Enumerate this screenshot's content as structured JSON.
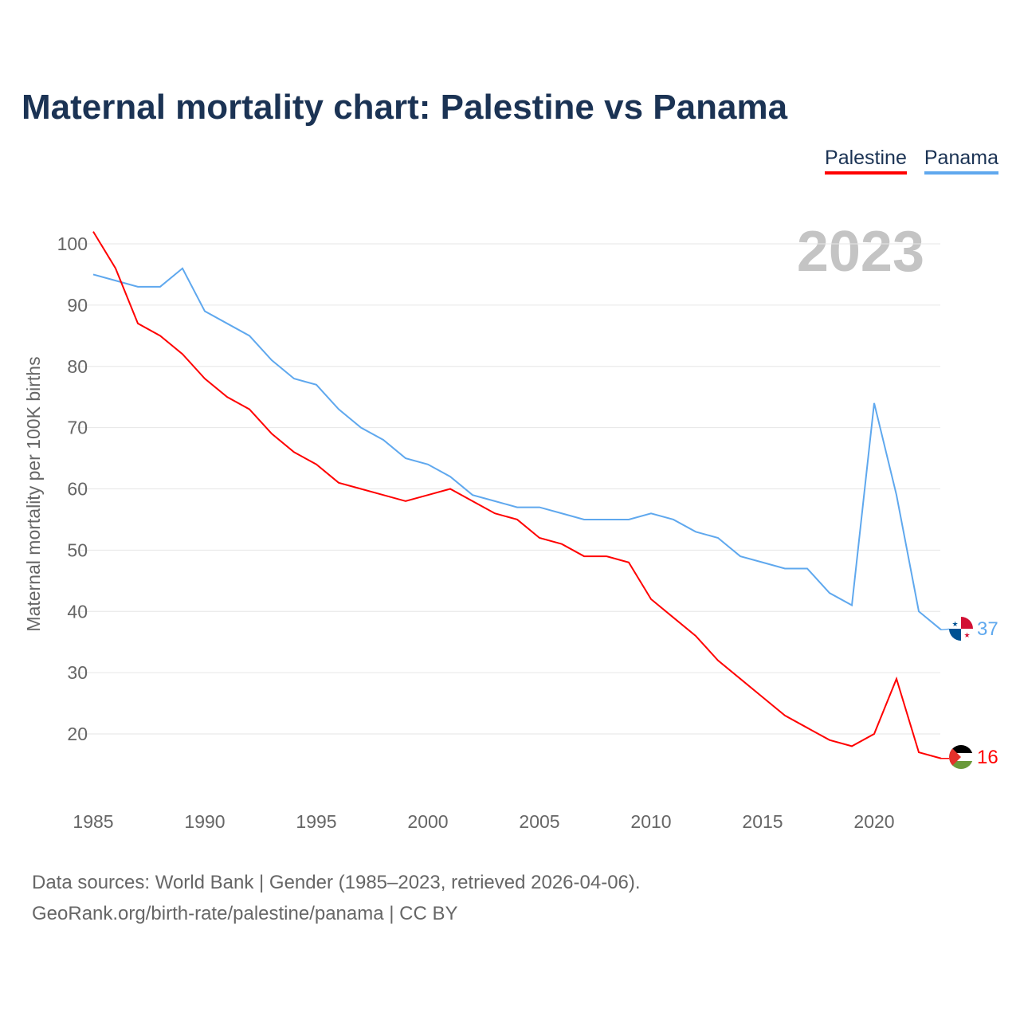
{
  "title": "Maternal mortality chart: Palestine vs Panama",
  "footer": {
    "line1": "Data sources: World Bank | Gender (1985–2023, retrieved 2026-04-06).",
    "line2": "GeoRank.org/birth-rate/palestine/panama | CC BY"
  },
  "chart_data": {
    "type": "line",
    "title": "Maternal mortality chart: Palestine vs Panama",
    "ylabel": "Maternal mortality per 100K births",
    "xlabel": "",
    "year_label": "2023",
    "ylim": [
      10,
      104
    ],
    "xlim": [
      1985,
      2023
    ],
    "yticks": [
      20,
      30,
      40,
      50,
      60,
      70,
      80,
      90,
      100
    ],
    "xticks": [
      1985,
      1990,
      1995,
      2000,
      2005,
      2010,
      2015,
      2020
    ],
    "grid": true,
    "legend_position": "top-right",
    "x": [
      1985,
      1986,
      1987,
      1988,
      1989,
      1990,
      1991,
      1992,
      1993,
      1994,
      1995,
      1996,
      1997,
      1998,
      1999,
      2000,
      2001,
      2002,
      2003,
      2004,
      2005,
      2006,
      2007,
      2008,
      2009,
      2010,
      2011,
      2012,
      2013,
      2014,
      2015,
      2016,
      2017,
      2018,
      2019,
      2020,
      2021,
      2022,
      2023
    ],
    "series": [
      {
        "name": "Palestine",
        "color": "#ff0000",
        "end_label": "16",
        "values": [
          102,
          96,
          87,
          85,
          82,
          78,
          75,
          73,
          69,
          66,
          64,
          61,
          60,
          59,
          58,
          59,
          60,
          58,
          56,
          55,
          52,
          51,
          49,
          49,
          48,
          42,
          39,
          36,
          32,
          29,
          26,
          23,
          21,
          19,
          18,
          20,
          29,
          17,
          16
        ]
      },
      {
        "name": "Panama",
        "color": "#5fa8ee",
        "end_label": "37",
        "values": [
          95,
          94,
          93,
          93,
          96,
          89,
          87,
          85,
          81,
          78,
          77,
          73,
          70,
          68,
          65,
          64,
          62,
          59,
          58,
          57,
          57,
          56,
          55,
          55,
          55,
          56,
          55,
          53,
          52,
          49,
          48,
          47,
          47,
          43,
          41,
          74,
          59,
          40,
          37
        ]
      }
    ]
  }
}
